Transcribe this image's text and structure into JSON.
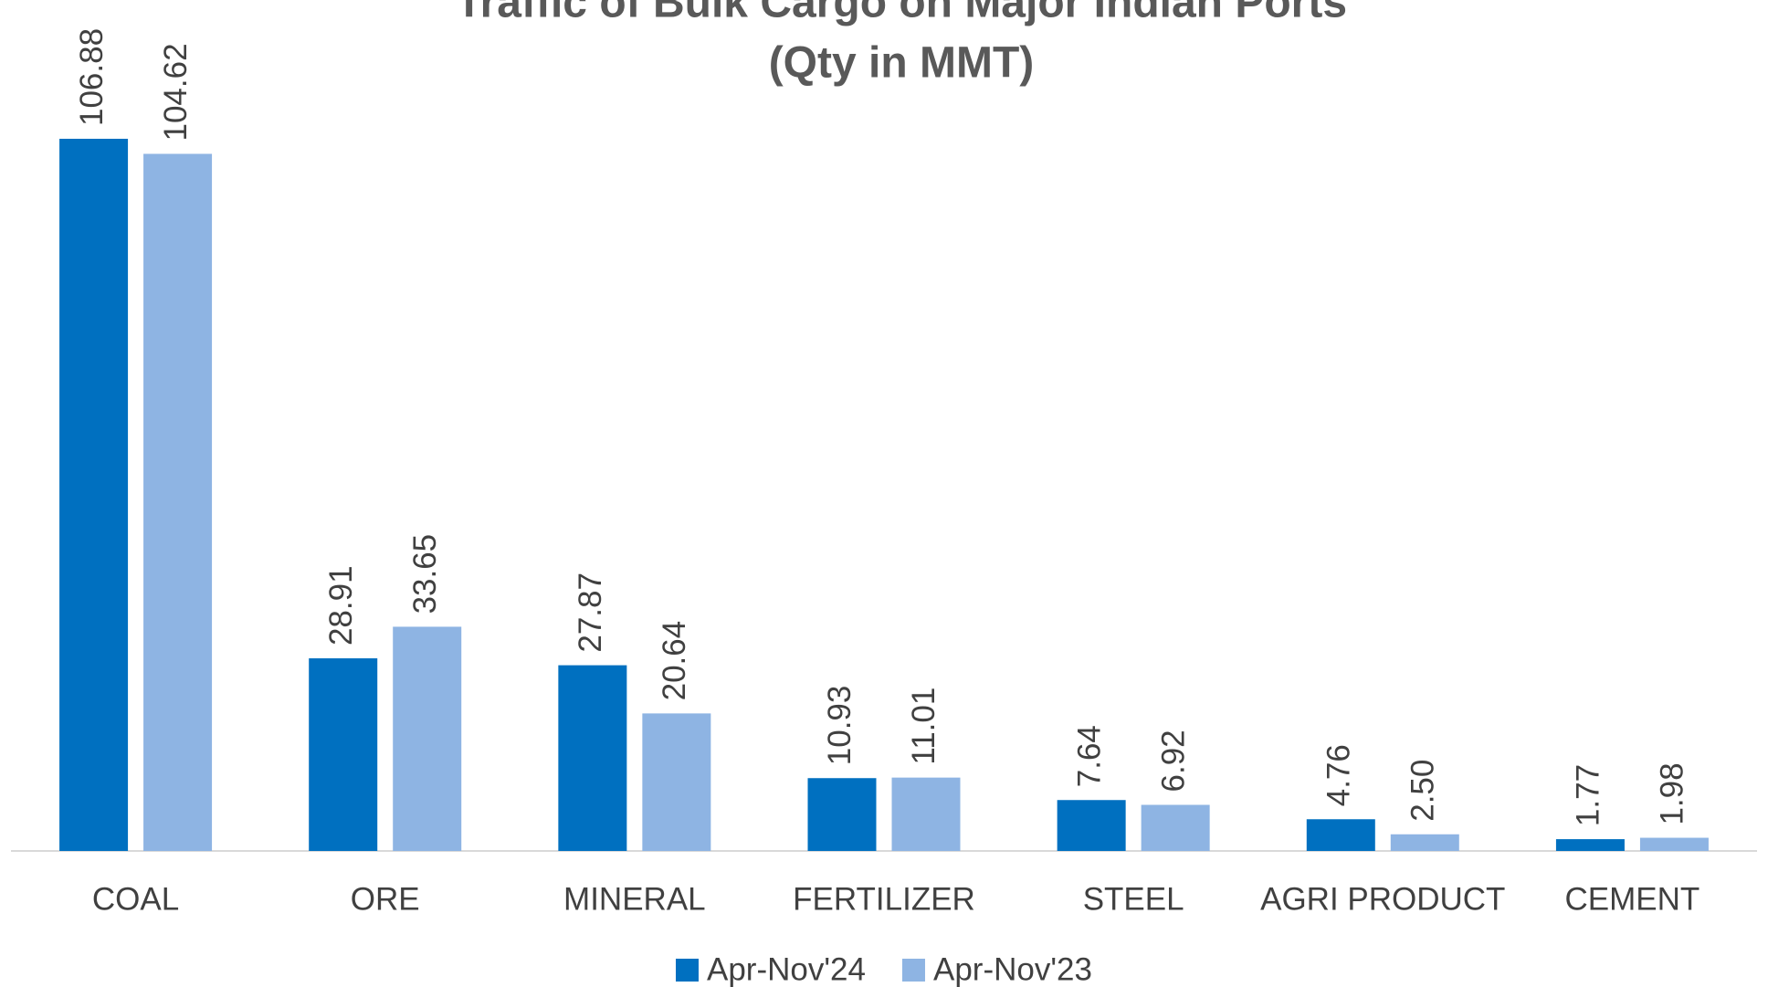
{
  "chart_data": {
    "type": "bar",
    "title": "Traffic of Bulk Cargo on Major Indian Ports",
    "subtitle": "(Qty in MMT)",
    "categories": [
      "COAL",
      "ORE",
      "MINERAL",
      "FERTILIZER",
      "STEEL",
      "AGRI PRODUCT",
      "CEMENT"
    ],
    "series": [
      {
        "name": "Apr-Nov'24",
        "color": "#0070c0",
        "values": [
          106.88,
          28.91,
          27.87,
          10.93,
          7.64,
          4.76,
          1.77
        ],
        "value_labels": [
          "106.88",
          "28.91",
          "27.87",
          "10.93",
          "7.64",
          "4.76",
          "1.77"
        ]
      },
      {
        "name": "Apr-Nov'23",
        "color": "#8eb4e3",
        "values": [
          104.62,
          33.65,
          20.64,
          11.01,
          6.92,
          2.5,
          1.98
        ],
        "value_labels": [
          "104.62",
          "33.65",
          "20.64",
          "11.01",
          "6.92",
          "2.50",
          "1.98"
        ]
      }
    ],
    "legend": "bottom"
  }
}
